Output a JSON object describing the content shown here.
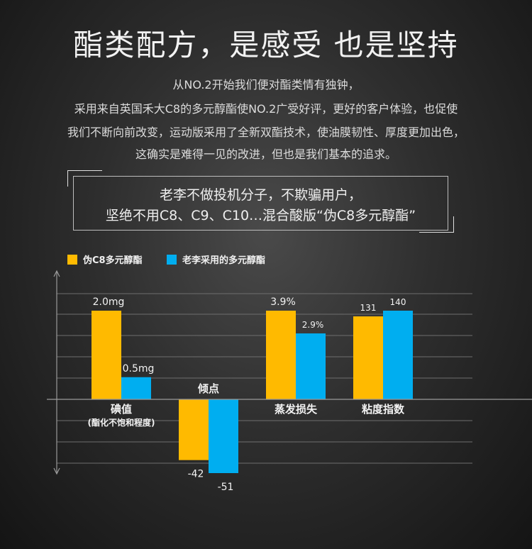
{
  "headline": "酯类配方，是感受 也是坚持",
  "intro_lines": [
    "从NO.2开始我们便对酯类情有独钟，",
    "采用来自英国禾大C8的多元醇酯使NO.2广受好评，更好的客户体验，也促使",
    "我们不断向前改变，运动版采用了全新双酯技术，使油膜韧性、厚度更加出色，",
    "这确实是难得一见的改进，但也是我们基本的追求。"
  ],
  "quote": {
    "line1": "老李不做投机分子，不欺骗用户，",
    "line2": "坚绝不用C8、C9、C10…混合酸版“伪C8多元醇酯”"
  },
  "colors": {
    "series_a": "#ffba00",
    "series_b": "#00aef0",
    "axis": "#9a9a9a",
    "grid": "#6e6e6e"
  },
  "chart_data": {
    "type": "bar",
    "categories": [
      "碘值",
      "倾点",
      "蒸发损失",
      "粘度指数"
    ],
    "category_notes": [
      "(酯化不饱和程度)",
      "",
      "",
      ""
    ],
    "series": [
      {
        "name": "伪C8多元醇酯",
        "values": [
          2.0,
          -42,
          3.9,
          131
        ],
        "labels": [
          "2.0mg",
          "-42",
          "3.9%",
          "131"
        ]
      },
      {
        "name": "老李采用的多元醇酯",
        "values": [
          0.5,
          -51,
          2.9,
          140
        ],
        "labels": [
          "0.5mg",
          "-51",
          "2.9%",
          "140"
        ]
      }
    ],
    "legend_position": "top-left",
    "grid": true,
    "xlabel": "",
    "ylabel": ""
  }
}
